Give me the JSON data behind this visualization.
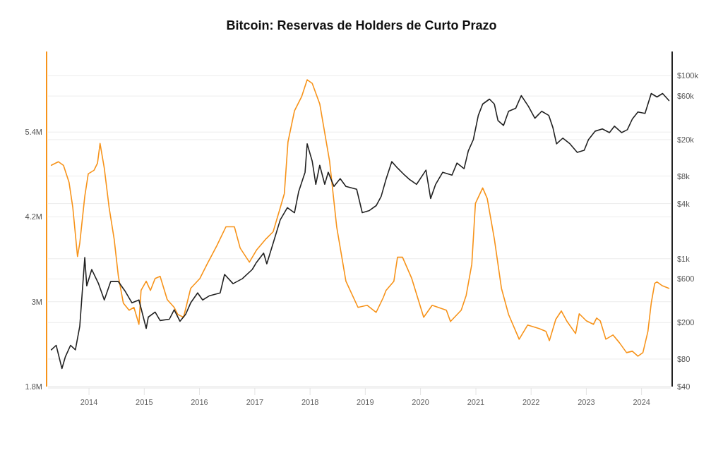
{
  "chart_data": {
    "type": "line",
    "title": "Bitcoin: Reservas de Holders de Curto Prazo",
    "xlim": [
      "2013-04-05",
      "2024-07-12"
    ],
    "xticks": [
      "2014",
      "2015",
      "2016",
      "2017",
      "2018",
      "2019",
      "2020",
      "2021",
      "2022",
      "2023",
      "2024"
    ],
    "ylim": [
      1800000,
      6540000
    ],
    "yticks": [
      {
        "value": 1800000,
        "label": "1.8M"
      },
      {
        "value": 3000000,
        "label": "3M"
      },
      {
        "value": 4200000,
        "label": "4.2M"
      },
      {
        "value": 5400000,
        "label": "5.4M"
      }
    ],
    "y2lim": [
      40,
      184000
    ],
    "y2ticks": [
      {
        "value": 40,
        "label": "$40"
      },
      {
        "value": 80,
        "label": "$80"
      },
      {
        "value": 200,
        "label": "$200"
      },
      {
        "value": 600,
        "label": "$600"
      },
      {
        "value": 1000,
        "label": "$1k"
      },
      {
        "value": 4000,
        "label": "$4k"
      },
      {
        "value": 8000,
        "label": "$8k"
      },
      {
        "value": 20000,
        "label": "$20k"
      },
      {
        "value": 60000,
        "label": "$60k"
      },
      {
        "value": 100000,
        "label": "$100k"
      }
    ],
    "log": "y2",
    "grid": "y",
    "series": [
      {
        "color": "#f7931a",
        "axis": "y",
        "x": [
          "2013-04-27",
          "2013-06-13",
          "2013-07-16",
          "2013-08-22",
          "2013-09-16",
          "2013-10-17",
          "2013-11-01",
          "2013-12-04",
          "2013-12-27",
          "2014-02-03",
          "2014-02-26",
          "2014-03-15",
          "2014-04-12",
          "2014-05-14",
          "2014-06-16",
          "2014-07-14",
          "2014-08-16",
          "2014-09-23",
          "2014-10-25",
          "2014-11-27",
          "2014-12-11",
          "2015-01-14",
          "2015-02-11",
          "2015-03-14",
          "2015-04-16",
          "2015-06-02",
          "2015-07-18",
          "2015-08-11",
          "2015-09-18",
          "2015-11-04",
          "2016-01-04",
          "2016-02-20",
          "2016-04-24",
          "2016-06-24",
          "2016-08-19",
          "2016-09-26",
          "2016-11-26",
          "2017-01-12",
          "2017-03-16",
          "2017-05-02",
          "2017-06-18",
          "2017-07-15",
          "2017-08-08",
          "2017-09-20",
          "2017-11-06",
          "2017-12-13",
          "2018-01-15",
          "2018-03-06",
          "2018-05-10",
          "2018-06-26",
          "2018-08-26",
          "2018-11-14",
          "2019-01-14",
          "2019-03-14",
          "2019-04-30",
          "2019-05-18",
          "2019-07-09",
          "2019-08-02",
          "2019-09-04",
          "2019-11-04",
          "2020-01-22",
          "2020-03-18",
          "2020-06-20",
          "2020-07-17",
          "2020-09-26",
          "2020-10-29",
          "2020-12-05",
          "2020-12-29",
          "2021-02-15",
          "2021-03-17",
          "2021-05-03",
          "2021-06-19",
          "2021-08-05",
          "2021-10-14",
          "2021-12-09",
          "2022-02-23",
          "2022-04-09",
          "2022-05-02",
          "2022-06-13",
          "2022-07-20",
          "2022-08-27",
          "2022-10-22",
          "2022-11-15",
          "2023-01-01",
          "2023-02-17",
          "2023-03-10",
          "2023-04-03",
          "2023-05-10",
          "2023-06-26",
          "2023-08-08",
          "2023-09-24",
          "2023-11-01",
          "2023-12-08",
          "2024-01-10",
          "2024-02-12",
          "2024-03-05",
          "2024-03-28",
          "2024-04-12",
          "2024-05-14",
          "2024-06-30"
        ],
        "values": [
          4930000,
          4980000,
          4930000,
          4690000,
          4330000,
          3640000,
          3830000,
          4490000,
          4810000,
          4860000,
          4960000,
          5240000,
          4890000,
          4330000,
          3890000,
          3360000,
          2980000,
          2880000,
          2920000,
          2680000,
          3160000,
          3290000,
          3160000,
          3330000,
          3360000,
          3030000,
          2920000,
          2820000,
          2780000,
          3190000,
          3330000,
          3530000,
          3790000,
          4060000,
          4060000,
          3760000,
          3560000,
          3730000,
          3890000,
          3990000,
          4330000,
          4530000,
          5260000,
          5700000,
          5900000,
          6140000,
          6090000,
          5800000,
          4990000,
          4060000,
          3290000,
          2920000,
          2950000,
          2850000,
          3060000,
          3160000,
          3290000,
          3630000,
          3630000,
          3330000,
          2780000,
          2950000,
          2880000,
          2720000,
          2880000,
          3090000,
          3530000,
          4390000,
          4610000,
          4460000,
          3890000,
          3190000,
          2820000,
          2470000,
          2670000,
          2620000,
          2580000,
          2450000,
          2750000,
          2870000,
          2720000,
          2550000,
          2830000,
          2730000,
          2680000,
          2770000,
          2730000,
          2470000,
          2530000,
          2420000,
          2280000,
          2300000,
          2230000,
          2280000,
          2580000,
          2980000,
          3260000,
          3280000,
          3230000,
          3190000
        ]
      },
      {
        "color": "#222222",
        "axis": "y2",
        "x": [
          "2013-04-27",
          "2013-05-29",
          "2013-07-06",
          "2013-07-29",
          "2013-09-01",
          "2013-10-03",
          "2013-11-01",
          "2013-12-04",
          "2013-12-17",
          "2014-01-19",
          "2014-03-05",
          "2014-04-12",
          "2014-05-24",
          "2014-07-14",
          "2014-08-26",
          "2014-10-12",
          "2014-11-27",
          "2015-01-14",
          "2015-01-28",
          "2015-03-14",
          "2015-04-16",
          "2015-06-16",
          "2015-07-18",
          "2015-08-25",
          "2015-10-02",
          "2015-11-04",
          "2015-12-20",
          "2016-01-22",
          "2016-03-08",
          "2016-05-17",
          "2016-06-15",
          "2016-08-10",
          "2016-10-10",
          "2016-12-15",
          "2017-01-12",
          "2017-02-28",
          "2017-03-21",
          "2017-05-02",
          "2017-06-18",
          "2017-08-04",
          "2017-09-20",
          "2017-10-18",
          "2017-11-29",
          "2017-12-13",
          "2018-01-15",
          "2018-02-08",
          "2018-03-06",
          "2018-04-08",
          "2018-05-01",
          "2018-06-08",
          "2018-07-19",
          "2018-08-26",
          "2018-11-05",
          "2018-12-12",
          "2019-01-28",
          "2019-03-14",
          "2019-04-16",
          "2019-05-18",
          "2019-06-25",
          "2019-08-02",
          "2019-09-18",
          "2019-10-20",
          "2019-12-06",
          "2020-02-06",
          "2020-03-08",
          "2020-04-10",
          "2020-05-27",
          "2020-07-27",
          "2020-08-29",
          "2020-10-15",
          "2020-11-12",
          "2020-12-15",
          "2021-01-17",
          "2021-02-15",
          "2021-04-01",
          "2021-05-03",
          "2021-05-27",
          "2021-07-03",
          "2021-08-05",
          "2021-09-21",
          "2021-10-28",
          "2021-12-14",
          "2022-01-26",
          "2022-03-12",
          "2022-04-28",
          "2022-05-25",
          "2022-06-18",
          "2022-07-30",
          "2022-09-15",
          "2022-11-02",
          "2022-12-18",
          "2023-01-15",
          "2023-03-01",
          "2023-04-17",
          "2023-06-03",
          "2023-07-06",
          "2023-08-22",
          "2023-09-29",
          "2023-11-01",
          "2023-12-08",
          "2024-01-24",
          "2024-03-05",
          "2024-04-12",
          "2024-05-19",
          "2024-06-30"
        ],
        "values": [
          101,
          113,
          63,
          85,
          113,
          101,
          183,
          1030,
          505,
          762,
          533,
          354,
          562,
          562,
          446,
          329,
          354,
          173,
          230,
          261,
          211,
          218,
          276,
          207,
          247,
          329,
          423,
          354,
          394,
          423,
          673,
          533,
          604,
          762,
          912,
          1150,
          879,
          1476,
          2660,
          3610,
          3180,
          5430,
          8810,
          18000,
          11700,
          6500,
          10500,
          6500,
          8810,
          6170,
          7500,
          6170,
          5740,
          3180,
          3360,
          3800,
          4800,
          7360,
          11500,
          9800,
          8200,
          7360,
          6500,
          9300,
          4550,
          6500,
          8810,
          8200,
          11100,
          9640,
          15100,
          20000,
          36800,
          49000,
          55500,
          49000,
          32400,
          28600,
          40900,
          44000,
          60700,
          46400,
          34300,
          40900,
          36800,
          27100,
          18000,
          20800,
          18000,
          14500,
          15300,
          20000,
          24800,
          26200,
          23900,
          28100,
          23900,
          25700,
          33600,
          40200,
          38800,
          64000,
          58500,
          64000,
          53500
        ]
      }
    ]
  }
}
